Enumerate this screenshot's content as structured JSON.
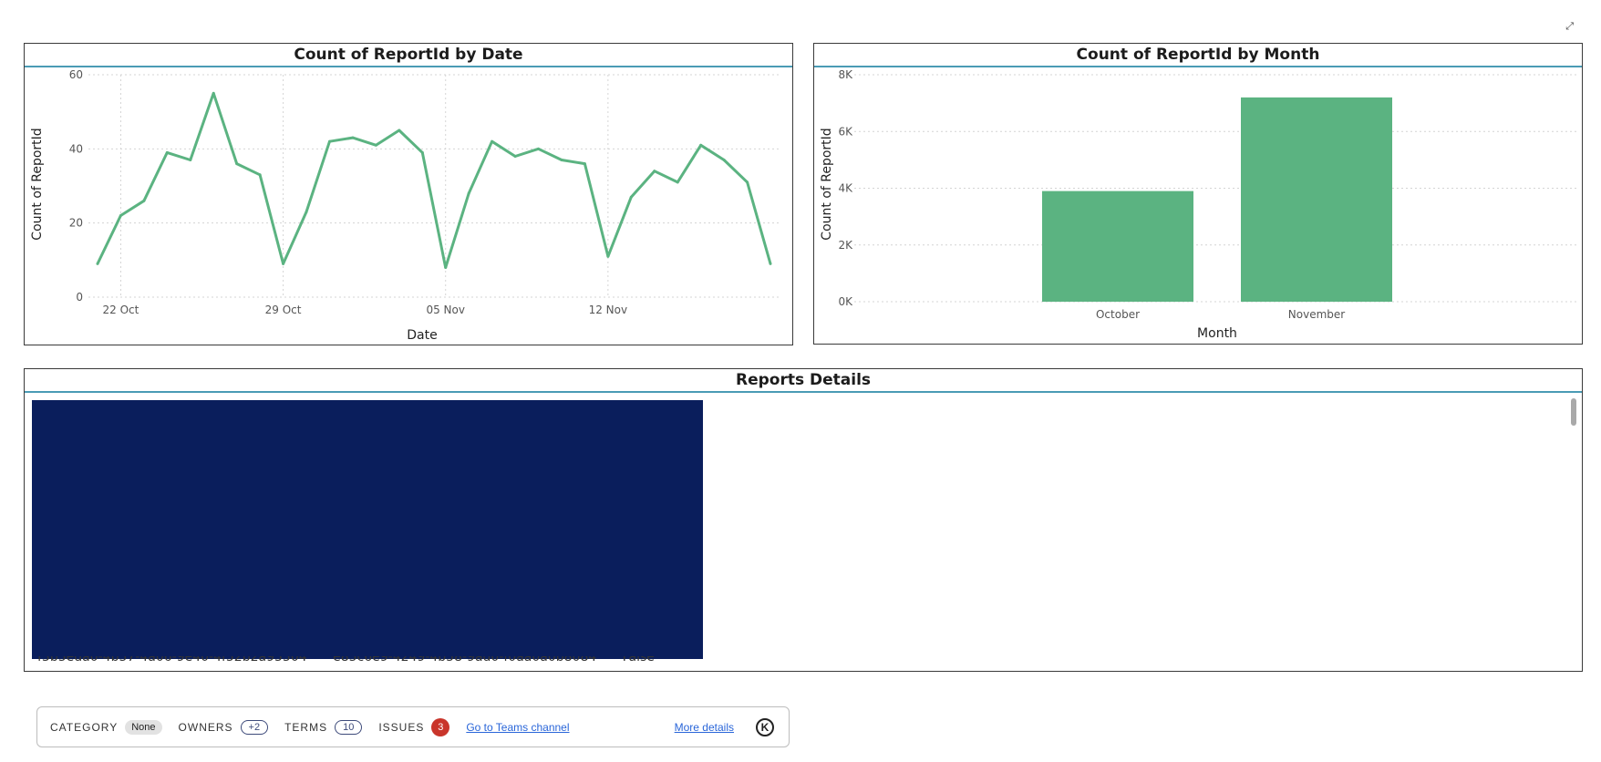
{
  "focus_icon": "focus-mode-icon",
  "charts": {
    "line": {
      "title": "Count of ReportId by Date",
      "xlabel": "Date",
      "ylabel": "Count of ReportId"
    },
    "bar": {
      "title": "Count of ReportId by Month",
      "xlabel": "Month",
      "ylabel": "Count of ReportId"
    }
  },
  "chart_data": [
    {
      "type": "line",
      "title": "Count of ReportId by Date",
      "xlabel": "Date",
      "ylabel": "Count of ReportId",
      "x_tick_labels": [
        "22 Oct",
        "29 Oct",
        "05 Nov",
        "12 Nov"
      ],
      "y_ticks": [
        "0",
        "20",
        "40",
        "60"
      ],
      "ylim": [
        0,
        60
      ],
      "grid": true,
      "color": "#5bb381",
      "series": [
        {
          "values": [
            9,
            22,
            26,
            39,
            37,
            55,
            36,
            33,
            9,
            23,
            42,
            43,
            41,
            45,
            39,
            8,
            28,
            42,
            38,
            40,
            37,
            36,
            11,
            27,
            34,
            31,
            41,
            37,
            31,
            9
          ]
        }
      ]
    },
    {
      "type": "bar",
      "title": "Count of ReportId by Month",
      "xlabel": "Month",
      "ylabel": "Count of ReportId",
      "categories": [
        "October",
        "November"
      ],
      "values": [
        3900,
        7200
      ],
      "y_ticks": [
        "0K",
        "2K",
        "4K",
        "6K",
        "8K"
      ],
      "ylim": [
        0,
        8000
      ],
      "grid": true,
      "color": "#5bb381"
    }
  ],
  "table": {
    "title": "Reports Details",
    "last_row": [
      "f3b5eda0-4b57-4a06-9e40-4f52b2a95504",
      "e85c6e9-4249-4b58-9ad0-f0aa0a0b8084",
      "False"
    ]
  },
  "info_bar": {
    "category_label": "CATEGORY",
    "category_value": "None",
    "owners_label": "OWNERS",
    "owners_value": "+2",
    "terms_label": "TERMS",
    "terms_value": "10",
    "issues_label": "ISSUES",
    "issues_value": "3",
    "teams_link": "Go to Teams channel",
    "details_link": "More details",
    "logo_letter": "K",
    "issues_color": "#c9352b"
  }
}
